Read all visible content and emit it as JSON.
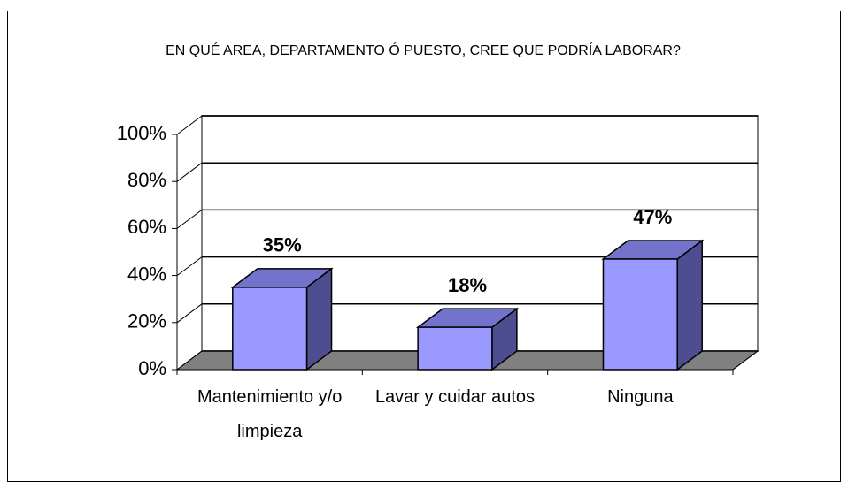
{
  "chart_data": {
    "type": "bar3d",
    "title": "EN QUÉ AREA, DEPARTAMENTO Ó PUESTO, CREE QUE PODRÍA LABORAR?",
    "categories": [
      "Mantenimiento y/o limpieza",
      "Lavar y cuidar autos",
      "Ninguna"
    ],
    "values": [
      35,
      18,
      47
    ],
    "value_labels": [
      "35%",
      "18%",
      "47%"
    ],
    "color": "#9999ff",
    "ylim": [
      0,
      100
    ],
    "yticks": [
      {
        "value": 0,
        "label": "0%"
      },
      {
        "value": 20,
        "label": "20%"
      },
      {
        "value": 40,
        "label": "40%"
      },
      {
        "value": 60,
        "label": "60%"
      },
      {
        "value": 80,
        "label": "80%"
      },
      {
        "value": 100,
        "label": "100%"
      }
    ],
    "grid": true
  }
}
